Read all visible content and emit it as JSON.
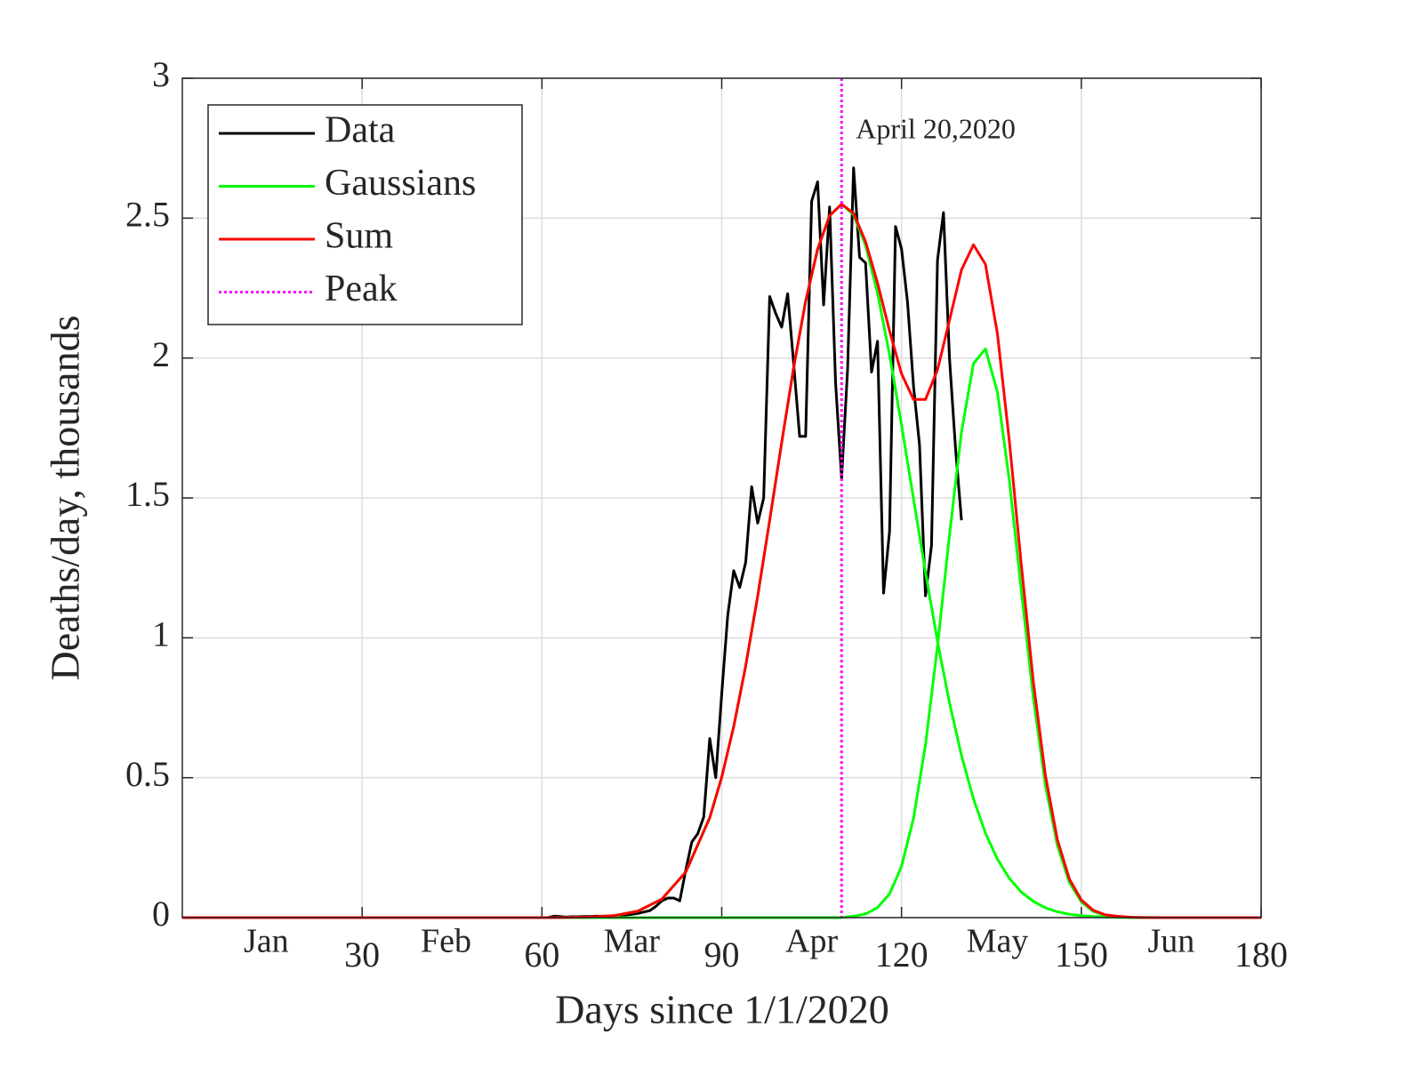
{
  "chart_data": {
    "type": "line",
    "xlabel": "Days since 1/1/2020",
    "ylabel": "Deaths/day, thousands",
    "xlim": [
      0,
      180
    ],
    "ylim": [
      0,
      3
    ],
    "xticks": [
      30,
      60,
      90,
      120,
      150,
      180
    ],
    "yticks": [
      0,
      0.5,
      1,
      1.5,
      2,
      2.5,
      3
    ],
    "month_ticks": [
      {
        "value": 14,
        "label": "Jan"
      },
      {
        "value": 44,
        "label": "Feb"
      },
      {
        "value": 75,
        "label": "Mar"
      },
      {
        "value": 105,
        "label": "Apr"
      },
      {
        "value": 136,
        "label": "May"
      },
      {
        "value": 165,
        "label": "Jun"
      }
    ],
    "grid": true,
    "legend": "upper left",
    "x": [
      0,
      30,
      50,
      60,
      64,
      68,
      72,
      76,
      80,
      84,
      88,
      90,
      92,
      94,
      96,
      98,
      100,
      102,
      104,
      106,
      108,
      110,
      112,
      114,
      116,
      118,
      120,
      122,
      124,
      126,
      128,
      130,
      132,
      134,
      136,
      138,
      140,
      142,
      144,
      146,
      148,
      150,
      152,
      154,
      156,
      158,
      160,
      164,
      168,
      174,
      180
    ],
    "series": [
      {
        "name": "Data",
        "color": "#000000",
        "x": [
          48,
          49,
          50,
          51,
          52,
          53,
          54,
          55,
          56,
          57,
          58,
          59,
          60,
          61,
          62,
          63,
          64,
          65,
          66,
          67,
          68,
          69,
          70,
          71,
          72,
          73,
          74,
          75,
          76,
          77,
          78,
          79,
          80,
          81,
          82,
          83,
          84,
          85,
          86,
          87,
          88,
          89,
          90,
          91,
          92,
          93,
          94,
          95,
          96,
          97,
          98,
          99,
          100,
          101,
          102,
          103,
          104,
          105,
          106,
          107,
          108,
          109,
          110,
          111,
          112,
          113,
          114,
          115,
          116,
          117,
          118,
          119,
          120,
          121,
          122,
          123,
          124,
          125,
          126,
          127,
          128,
          129,
          130
        ],
        "values": [
          0,
          0,
          0,
          0,
          0,
          0,
          0,
          0,
          0,
          0,
          0,
          0,
          0,
          0,
          0.005,
          0.004,
          0.002,
          0.003,
          0.003,
          0.004,
          0.004,
          0.005,
          0.005,
          0.005,
          0.006,
          0.008,
          0.01,
          0.012,
          0.015,
          0.02,
          0.025,
          0.04,
          0.06,
          0.07,
          0.07,
          0.06,
          0.17,
          0.27,
          0.3,
          0.36,
          0.64,
          0.5,
          0.8,
          1.08,
          1.24,
          1.18,
          1.27,
          1.54,
          1.41,
          1.5,
          2.22,
          2.16,
          2.11,
          2.23,
          1.98,
          1.72,
          1.72,
          2.56,
          2.63,
          2.19,
          2.54,
          1.91,
          1.57,
          1.96,
          2.68,
          2.36,
          2.34,
          1.95,
          2.06,
          1.16,
          1.38,
          2.47,
          2.39,
          2.2,
          1.9,
          1.69,
          1.15,
          1.33,
          2.35,
          2.52,
          2,
          1.68,
          1.42
        ]
      },
      {
        "name": "Gaussians",
        "color": "#00ff00",
        "values": [
          0,
          0,
          0,
          0.0001,
          0.0005,
          0.002,
          0.007,
          0.023,
          0.066,
          0.163,
          0.357,
          0.502,
          0.683,
          0.9,
          1.149,
          1.42,
          1.697,
          1.966,
          2.203,
          2.389,
          2.509,
          2.55,
          2.512,
          2.403,
          2.232,
          2.012,
          1.761,
          1.497,
          1.234,
          0.988,
          0.768,
          0.58,
          0.425,
          0.302,
          0.209,
          0.14,
          0.091,
          0.058,
          0.035,
          0.021,
          0.012,
          0.007,
          0.004,
          0.002,
          0.001,
          0.0005,
          0.0002,
          0,
          0,
          0,
          0
        ]
      },
      {
        "color": "#00ff00",
        "values": [
          0,
          0,
          0,
          0,
          0,
          0,
          0,
          0,
          0,
          0,
          0,
          0,
          0,
          0,
          0,
          0,
          0,
          0,
          0,
          0,
          0,
          0,
          0.005,
          0.013,
          0.036,
          0.085,
          0.183,
          0.355,
          0.618,
          0.97,
          1.367,
          1.735,
          1.98,
          2.033,
          1.878,
          1.561,
          1.167,
          0.784,
          0.474,
          0.258,
          0.126,
          0.056,
          0.022,
          0.008,
          0.003,
          0.001,
          0.0003,
          0,
          0,
          0,
          0
        ]
      },
      {
        "name": "Sum",
        "color": "#ff0000",
        "values": [
          0,
          0,
          0,
          0.0001,
          0.0005,
          0.002,
          0.007,
          0.023,
          0.066,
          0.163,
          0.357,
          0.502,
          0.683,
          0.9,
          1.149,
          1.42,
          1.697,
          1.966,
          2.203,
          2.389,
          2.509,
          2.55,
          2.517,
          2.416,
          2.268,
          2.097,
          1.944,
          1.852,
          1.852,
          1.958,
          2.135,
          2.315,
          2.405,
          2.335,
          2.087,
          1.701,
          1.258,
          0.842,
          0.509,
          0.279,
          0.138,
          0.063,
          0.026,
          0.01,
          0.005,
          0.0015,
          0.0005,
          0,
          0,
          0,
          0
        ]
      }
    ],
    "peak": {
      "name": "Peak",
      "color": "#ff00ff",
      "x": 110,
      "label": "April 20,2020"
    }
  }
}
